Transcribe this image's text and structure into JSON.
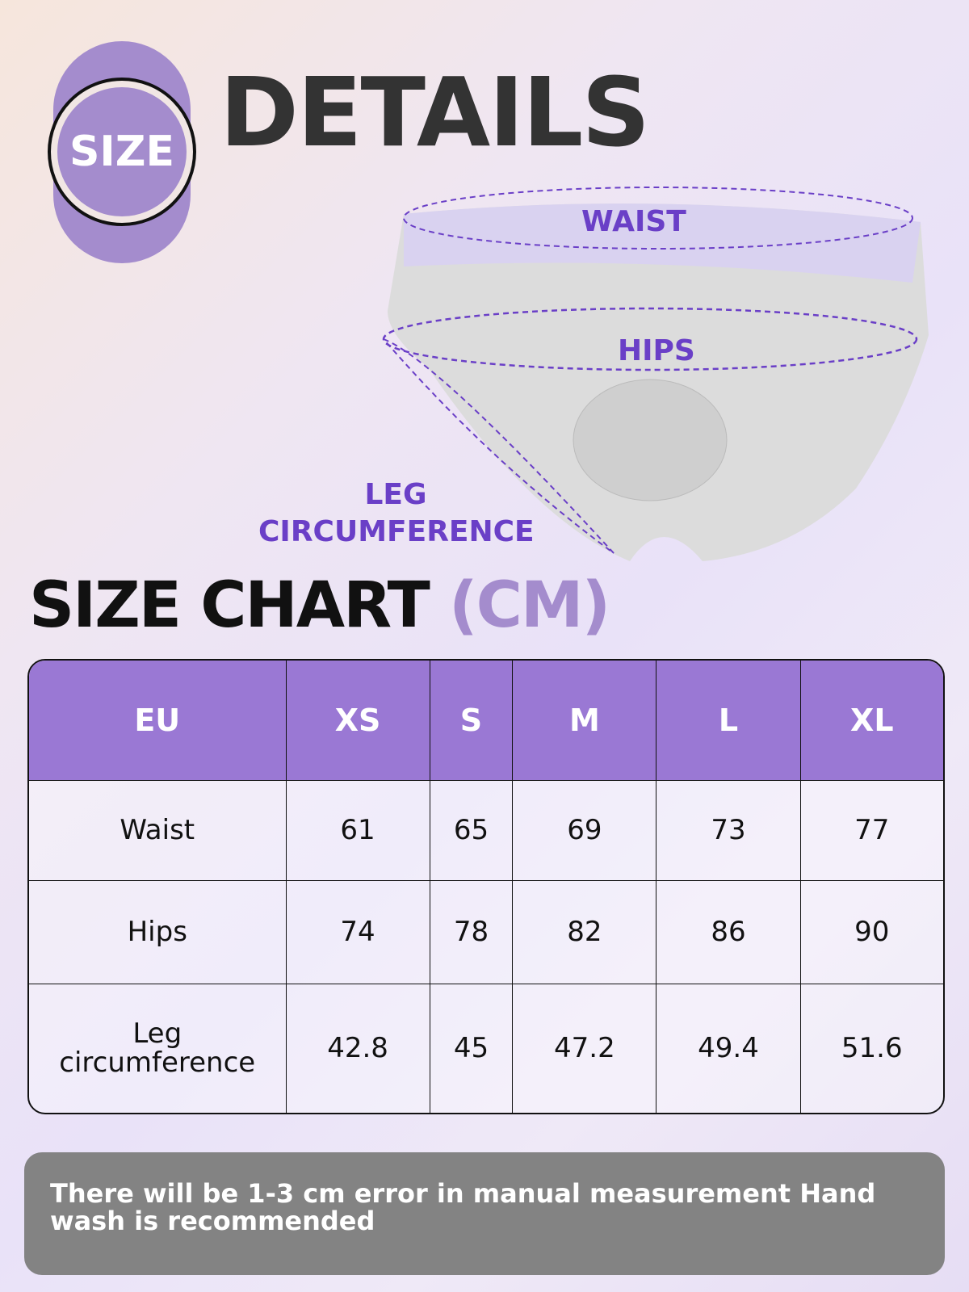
{
  "badge": {
    "label": "SIZE"
  },
  "header": {
    "title": "DETAILS"
  },
  "diagram": {
    "waist": "WAIST",
    "hips": "HIPS",
    "leg": "LEG\nCIRCUMFERENCE",
    "leg_line1": "LEG",
    "leg_line2": "CIRCUMFERENCE"
  },
  "chart": {
    "title": "SIZE CHART",
    "unit": "(CM)"
  },
  "table": {
    "headers": [
      "EU",
      "XS",
      "S",
      "M",
      "L",
      "XL"
    ],
    "rows": [
      {
        "label": "Waist",
        "values": [
          "61",
          "65",
          "69",
          "73",
          "77"
        ]
      },
      {
        "label": "Hips",
        "values": [
          "74",
          "78",
          "82",
          "86",
          "90"
        ]
      },
      {
        "label": "Leg circumference",
        "label_line1": "Leg",
        "label_line2": "circumference",
        "values": [
          "42.8",
          "45",
          "47.2",
          "49.4",
          "51.6"
        ]
      }
    ]
  },
  "note": "There will be 1-3 cm error in manual measurement Hand wash is recommended",
  "colors": {
    "accent": "#9a78d4",
    "label": "#6a3fc7",
    "note_bg": "#838383"
  }
}
